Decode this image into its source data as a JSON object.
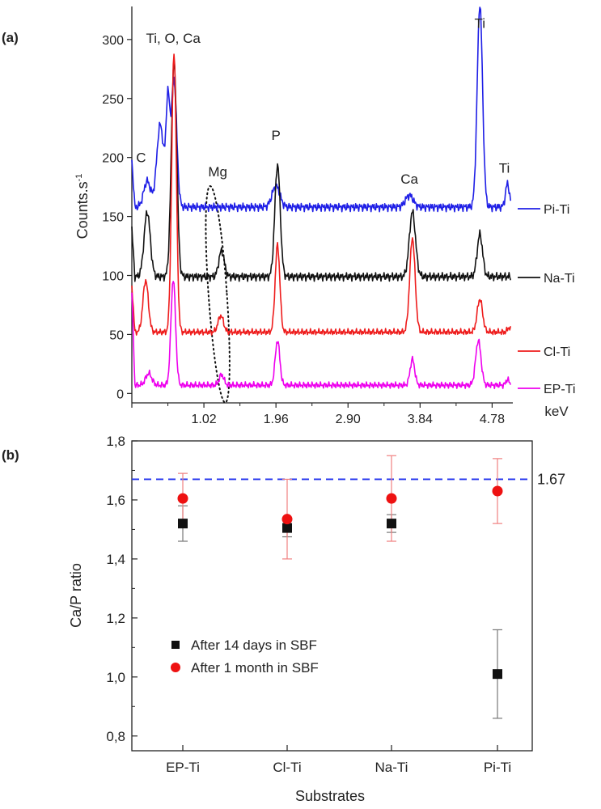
{
  "chart_data": [
    {
      "panel_label": "(a)",
      "type": "line",
      "xlabel": "keV",
      "ylabel": "Counts.s",
      "ylabel_superscript": "-1",
      "xlim": [
        0.08,
        5.05
      ],
      "ylim": [
        -8,
        328
      ],
      "x_ticks": [
        "1.02",
        "1.96",
        "2.90",
        "3.84",
        "4.78"
      ],
      "y_ticks": [
        "0",
        "50",
        "100",
        "150",
        "200",
        "250",
        "300"
      ],
      "peak_labels": [
        {
          "text": "C",
          "x": 0.2,
          "y": 196
        },
        {
          "text": "Ti, O, Ca",
          "x": 0.62,
          "y": 297
        },
        {
          "text": "Mg",
          "x": 1.2,
          "y": 184
        },
        {
          "text": "P",
          "x": 1.96,
          "y": 215
        },
        {
          "text": "Ca",
          "x": 3.7,
          "y": 178
        },
        {
          "text": "Ti",
          "x": 4.62,
          "y": 310
        },
        {
          "text": "Ti",
          "x": 4.94,
          "y": 187
        }
      ],
      "annotation_region": {
        "label": "Mg",
        "x_center": 1.2,
        "y_center": 84,
        "x_halfwidth": 0.12,
        "y_halfwidth": 92
      },
      "series": [
        {
          "name": "Pi-Ti",
          "color": "#1f1fe6",
          "baseline": 158,
          "wiggle": 4,
          "peaks": [
            [
              0.28,
              22,
              0.045
            ],
            [
              0.45,
              70,
              0.045
            ],
            [
              0.55,
              85,
              0.025
            ],
            [
              0.63,
              108,
              0.035
            ],
            [
              1.96,
              18,
              0.05
            ],
            [
              3.7,
              10,
              0.05
            ],
            [
              4.62,
              172,
              0.035
            ],
            [
              4.98,
              20,
              0.025
            ]
          ]
        },
        {
          "name": "Na-Ti",
          "color": "#111111",
          "baseline": 99,
          "wiggle": 4,
          "peaks": [
            [
              0.28,
              55,
              0.04
            ],
            [
              0.63,
              182,
              0.035
            ],
            [
              1.25,
              22,
              0.035
            ],
            [
              1.98,
              95,
              0.035
            ],
            [
              3.74,
              55,
              0.04
            ],
            [
              4.62,
              36,
              0.035
            ]
          ]
        },
        {
          "name": "Cl-Ti",
          "color": "#ee1c1c",
          "baseline": 52,
          "wiggle": 3,
          "peaks": [
            [
              0.26,
              44,
              0.035
            ],
            [
              0.63,
              238,
              0.03
            ],
            [
              1.24,
              14,
              0.035
            ],
            [
              1.98,
              74,
              0.03
            ],
            [
              3.74,
              80,
              0.035
            ],
            [
              4.62,
              28,
              0.035
            ],
            [
              5.0,
              4,
              0.02
            ]
          ]
        },
        {
          "name": "EP-Ti",
          "color": "#ee00ee",
          "baseline": 7,
          "wiggle": 3,
          "peaks": [
            [
              0.3,
              10,
              0.04
            ],
            [
              0.62,
              90,
              0.03
            ],
            [
              1.25,
              9,
              0.03
            ],
            [
              1.98,
              38,
              0.03
            ],
            [
              3.74,
              22,
              0.03
            ],
            [
              4.6,
              38,
              0.035
            ],
            [
              4.98,
              5,
              0.02
            ]
          ]
        }
      ]
    },
    {
      "panel_label": "(b)",
      "type": "scatter",
      "xlabel": "Substrates",
      "ylabel": "Ca/P ratio",
      "categories": [
        "EP-Ti",
        "Cl-Ti",
        "Na-Ti",
        "Pi-Ti"
      ],
      "ylim": [
        0.75,
        1.8
      ],
      "y_ticks": [
        "0,8",
        "1,0",
        "1,2",
        "1,4",
        "1,6",
        "1,8"
      ],
      "reference_line": {
        "value": 1.67,
        "label": "1.67",
        "color": "#2233ee"
      },
      "series": [
        {
          "name": "After 14 days in SBF",
          "marker": "square",
          "color": "#111111",
          "values": [
            1.52,
            1.505,
            1.52,
            1.01
          ],
          "errors": [
            0.06,
            0.03,
            0.03,
            0.15
          ]
        },
        {
          "name": "After 1 month in SBF",
          "marker": "circle",
          "color": "#ee1111",
          "values": [
            1.605,
            1.535,
            1.605,
            1.63
          ],
          "errors": [
            0.085,
            0.135,
            0.145,
            0.11
          ]
        }
      ],
      "legend_position": "lower-left"
    }
  ]
}
